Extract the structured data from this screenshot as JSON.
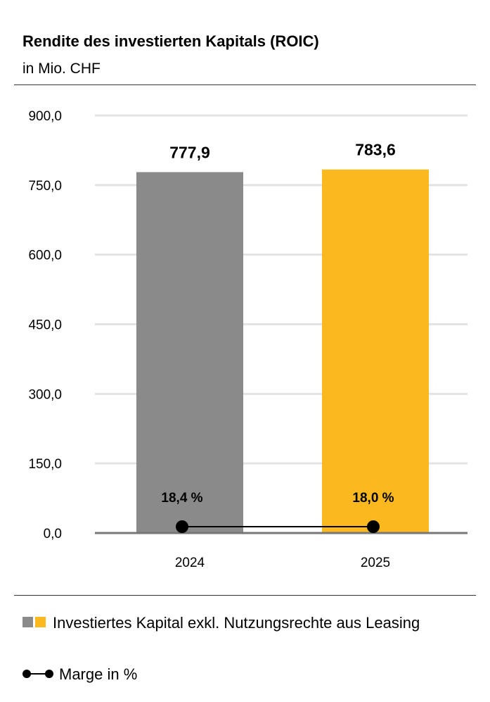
{
  "title": "Rendite des investierten Kapitals (ROIC)",
  "subtitle": "in Mio. CHF",
  "chart_data": {
    "type": "bar",
    "categories": [
      "2024",
      "2025"
    ],
    "values": [
      777.9,
      783.6
    ],
    "value_labels": [
      "777,9",
      "783,6"
    ],
    "bar_colors": [
      "#8a8a8a",
      "#fbb91f"
    ],
    "ylim": [
      0,
      900
    ],
    "yticks": [
      0,
      150,
      300,
      450,
      600,
      750,
      900
    ],
    "ytick_labels": [
      "0,0",
      "150,0",
      "300,0",
      "450,0",
      "600,0",
      "750,0",
      "900,0"
    ],
    "grid": true,
    "line_series": {
      "name": "Marge in %",
      "values": [
        18.4,
        18.0
      ],
      "labels": [
        "18,4 %",
        "18,0 %"
      ],
      "color": "#000000"
    }
  },
  "legend": {
    "bars_label": "Investiertes Kapital exkl. Nutzungsrechte aus Leasing",
    "bars_colors": [
      "#8a8a8a",
      "#fbb91f"
    ],
    "line_label": "Marge in %"
  }
}
